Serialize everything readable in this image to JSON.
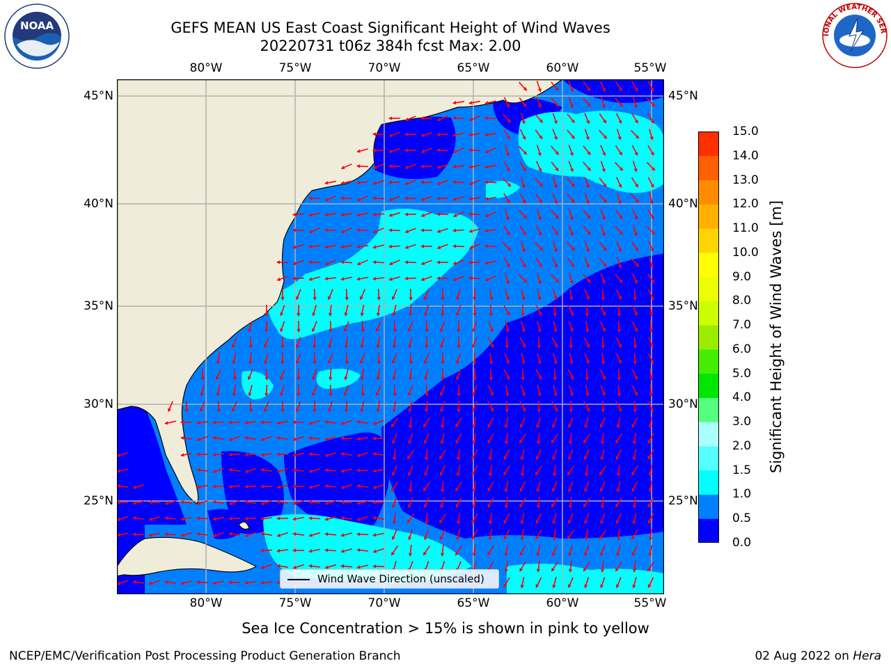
{
  "title": {
    "line1": "GEFS MEAN US East Coast Significant Height of Wind Waves",
    "line2": "20220731 t06z 384h fcst   Max: 2.00"
  },
  "axes": {
    "lon_labels": [
      "80°W",
      "75°W",
      "70°W",
      "65°W",
      "60°W",
      "55°W"
    ],
    "lat_labels": [
      "45°N",
      "40°N",
      "35°N",
      "30°N",
      "25°N"
    ]
  },
  "colorbar": {
    "label": "Significant Height of Wind Waves [m]",
    "ticks": [
      "15.0",
      "14.0",
      "13.0",
      "12.0",
      "11.0",
      "10.0",
      "9.0",
      "8.0",
      "7.0",
      "6.0",
      "5.0",
      "4.0",
      "3.0",
      "2.0",
      "1.5",
      "1.0",
      "0.5",
      "0.0"
    ],
    "colors": [
      "#0000ff",
      "#0080ff",
      "#00ffff",
      "#55ffff",
      "#aaffff",
      "#55ff80",
      "#00e600",
      "#44ee00",
      "#99ee00",
      "#ccff00",
      "#eeff00",
      "#ffff00",
      "#ffd400",
      "#ffb000",
      "#ff8c00",
      "#ff6000",
      "#ff3000",
      "#ff0000"
    ]
  },
  "legend": {
    "label": "Wind Wave Direction (unscaled)"
  },
  "note": "Sea Ice Concentration > 15% is shown in pink to yellow",
  "footer": {
    "left": "NCEP/EMC/Verification Post Processing Product Generation Branch",
    "right_date": "02 Aug 2022 on ",
    "right_host": "Hera"
  },
  "logos": {
    "left": "NOAA",
    "right": "NATIONAL WEATHER SERVICE"
  },
  "colors": {
    "land": "#efecda",
    "arrow": "#ff0000",
    "grid": "#b0b0b0",
    "deep": "#0000ff",
    "mid": "#0080ff",
    "light": "#00ffff",
    "lighter": "#55ffff"
  }
}
